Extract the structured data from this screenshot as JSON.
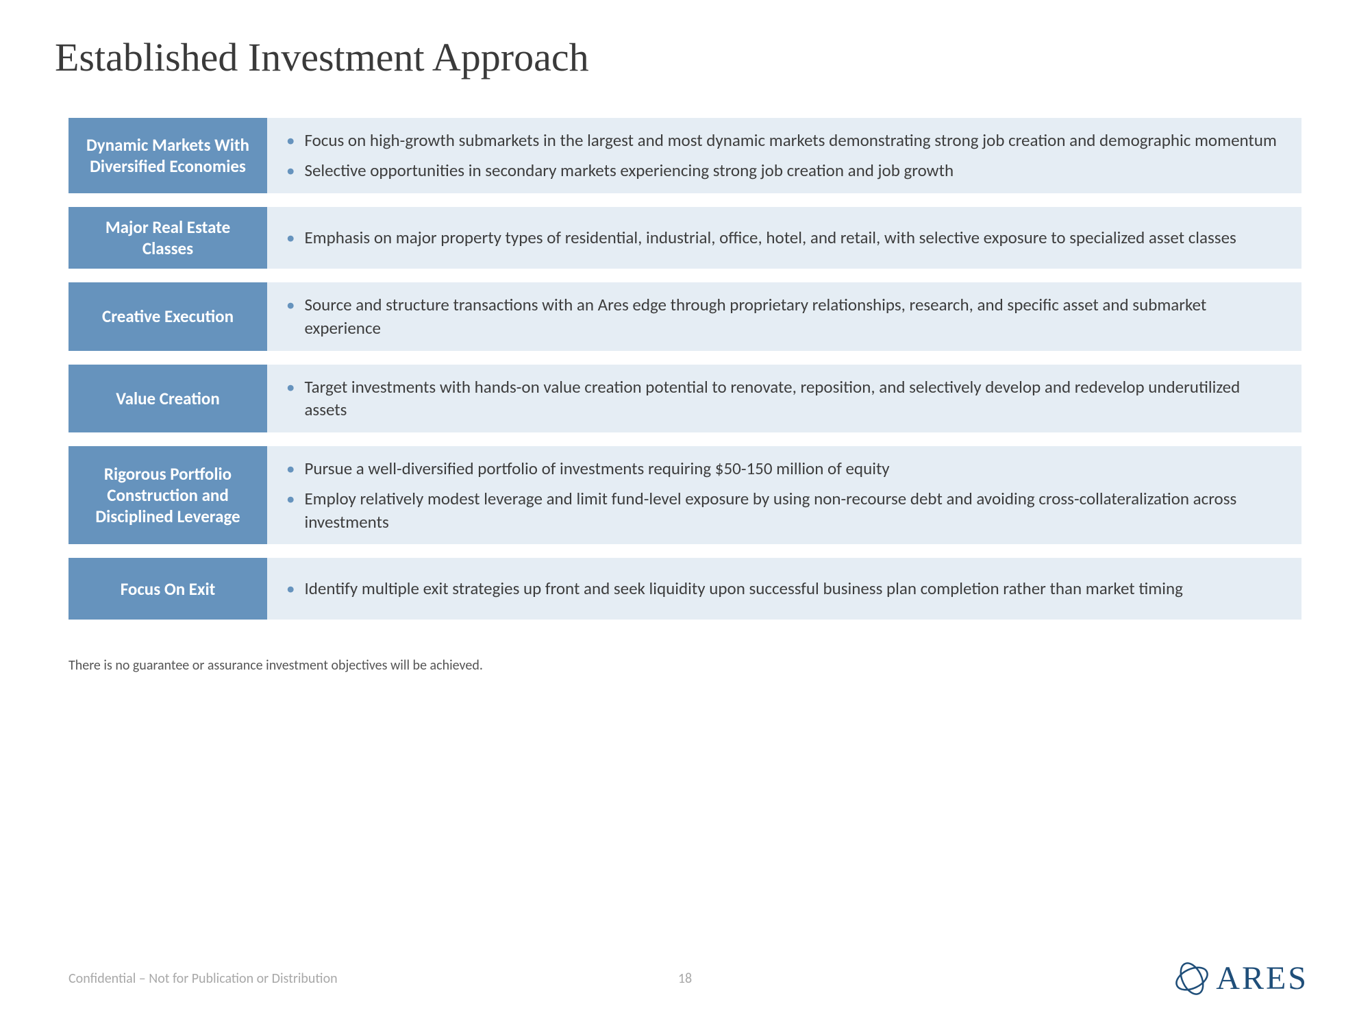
{
  "title": "Established Investment Approach",
  "colors": {
    "label_bg": "#6693bd",
    "label_text": "#ffffff",
    "body_bg": "#e5edf4",
    "body_text": "#3d3d3d",
    "bullet": "#6693bd",
    "title_text": "#3a3a3a",
    "footer_text": "#a8a8a8",
    "logo_color": "#1f4e79"
  },
  "typography": {
    "title_fontsize": 58,
    "label_fontsize": 25,
    "body_fontsize": 25,
    "disclaimer_fontsize": 20,
    "footer_fontsize": 20,
    "logo_fontsize": 48
  },
  "rows": [
    {
      "label": "Dynamic Markets With Diversified Economies",
      "bullets": [
        "Focus on high-growth submarkets in the largest and most dynamic markets demonstrating strong job creation and demographic momentum",
        "Selective opportunities in secondary markets experiencing strong job creation and job growth"
      ]
    },
    {
      "label": "Major Real Estate Classes",
      "bullets": [
        "Emphasis on major property types of residential, industrial, office, hotel, and retail, with selective exposure to specialized asset classes"
      ]
    },
    {
      "label": "Creative Execution",
      "bullets": [
        "Source and structure transactions with an Ares edge through proprietary relationships, research, and specific asset and submarket experience"
      ]
    },
    {
      "label": "Value Creation",
      "bullets": [
        "Target investments with hands-on value creation potential to renovate, reposition, and selectively develop and redevelop underutilized assets"
      ]
    },
    {
      "label": "Rigorous Portfolio Construction and Disciplined Leverage",
      "bullets": [
        "Pursue a well-diversified portfolio of investments requiring $50-150 million of equity",
        "Employ relatively modest leverage and limit fund-level exposure by using non-recourse debt and avoiding cross-collateralization across investments"
      ]
    },
    {
      "label": "Focus On Exit",
      "bullets": [
        "Identify multiple exit strategies up front and seek liquidity upon successful business plan completion rather than market timing"
      ]
    }
  ],
  "disclaimer": "There is no guarantee or assurance investment objectives will be achieved.",
  "footer": "Confidential – Not for Publication or Distribution",
  "page_number": "18",
  "logo_text": "ARES"
}
